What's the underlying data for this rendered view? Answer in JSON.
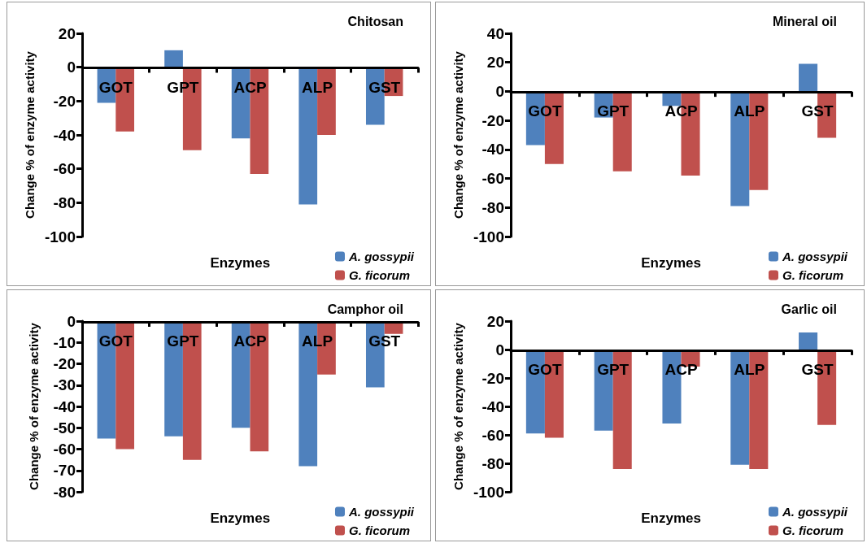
{
  "chart_data": [
    {
      "type": "bar",
      "title": "Chitosan",
      "xlabel": "Enzymes",
      "ylabel": "Change % of enzyme activity",
      "categories": [
        "GOT",
        "GPT",
        "ACP",
        "ALP",
        "GST"
      ],
      "series": [
        {
          "name": "A. gossypii",
          "color": "#4f81bd",
          "values": [
            -21,
            10,
            -42,
            -81,
            -34
          ]
        },
        {
          "name": "G. ficorum",
          "color": "#c0504d",
          "values": [
            -38,
            -49,
            -63,
            -40,
            -17
          ]
        }
      ],
      "ylim": [
        -100,
        20
      ],
      "yticks": [
        -100,
        -80,
        -60,
        -40,
        -20,
        0,
        20
      ],
      "legend": "bottom right"
    },
    {
      "type": "bar",
      "title": "Mineral oil",
      "xlabel": "Enzymes",
      "ylabel": "Change % of enzyme activity",
      "categories": [
        "GOT",
        "GPT",
        "ACP",
        "ALP",
        "GST"
      ],
      "series": [
        {
          "name": "A. gossypii",
          "color": "#4f81bd",
          "values": [
            -37,
            -18,
            -10,
            -79,
            19
          ]
        },
        {
          "name": "G. ficorum",
          "color": "#c0504d",
          "values": [
            -50,
            -55,
            -58,
            -68,
            -32
          ]
        }
      ],
      "ylim": [
        -100,
        40
      ],
      "yticks": [
        -100,
        -80,
        -60,
        -40,
        -20,
        0,
        20,
        40
      ],
      "legend": "bottom right"
    },
    {
      "type": "bar",
      "title": "Camphor oil",
      "xlabel": "Enzymes",
      "ylabel": "Change % of enzyme activity",
      "categories": [
        "GOT",
        "GPT",
        "ACP",
        "ALP",
        "GST"
      ],
      "series": [
        {
          "name": "A. gossypii",
          "color": "#4f81bd",
          "values": [
            -55,
            -54,
            -50,
            -68,
            -31
          ]
        },
        {
          "name": "G. ficorum",
          "color": "#c0504d",
          "values": [
            -60,
            -65,
            -61,
            -25,
            -6
          ]
        }
      ],
      "ylim": [
        -80,
        0
      ],
      "yticks": [
        -80,
        -70,
        -60,
        -50,
        -40,
        -30,
        -20,
        -10,
        0
      ],
      "legend": "bottom right"
    },
    {
      "type": "bar",
      "title": "Garlic oil",
      "xlabel": "Enzymes",
      "ylabel": "Change % of enzyme activity",
      "categories": [
        "GOT",
        "GPT",
        "ACP",
        "ALP",
        "GST"
      ],
      "series": [
        {
          "name": "A. gossypii",
          "color": "#4f81bd",
          "values": [
            -59,
            -57,
            -52,
            -81,
            12
          ]
        },
        {
          "name": "G. ficorum",
          "color": "#c0504d",
          "values": [
            -62,
            -84,
            -12,
            -84,
            -53
          ]
        }
      ],
      "ylim": [
        -100,
        20
      ],
      "yticks": [
        -100,
        -80,
        -60,
        -40,
        -20,
        0,
        20
      ],
      "legend": "bottom right"
    }
  ]
}
